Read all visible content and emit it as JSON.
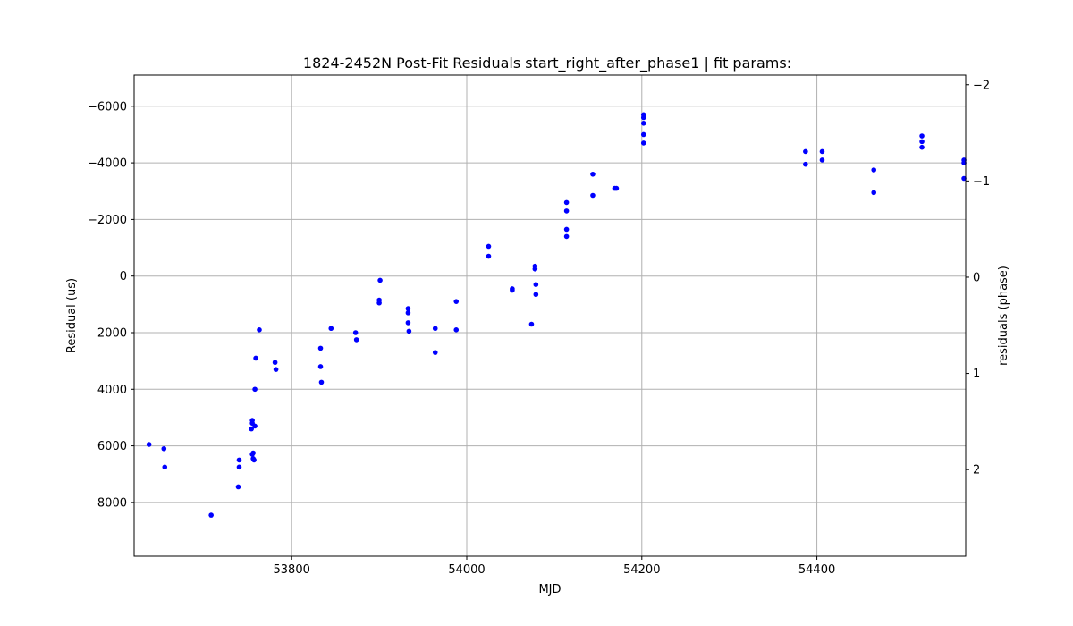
{
  "chart_data": {
    "type": "scatter",
    "title": "1824-2452N Post-Fit Residuals start_right_after_phase1 | fit params:",
    "xlabel": "MJD",
    "ylabel": "Residual (us)",
    "y2label": "residuals (phase)",
    "xlim": [
      53620,
      54570
    ],
    "ylim": [
      9900,
      -7100
    ],
    "y_inverted": true,
    "y2lim": [
      2.9,
      -2.1
    ],
    "x_ticks": [
      53800,
      54000,
      54200,
      54400
    ],
    "y_ticks": [
      -6000,
      -4000,
      -2000,
      0,
      2000,
      4000,
      6000,
      8000
    ],
    "y2_ticks": [
      -2,
      -1,
      0,
      1,
      2
    ],
    "grid": true,
    "marker_color": "#0000ff",
    "series": [
      {
        "points": [
          [
            53637,
            5950
          ],
          [
            53654,
            6100
          ],
          [
            53655,
            6750
          ],
          [
            53708,
            8450
          ],
          [
            53739,
            7450
          ],
          [
            53740,
            6750
          ],
          [
            53740,
            6500
          ],
          [
            53754,
            5400
          ],
          [
            53755,
            5100
          ],
          [
            53755,
            5200
          ],
          [
            53755,
            6300
          ],
          [
            53756,
            6250
          ],
          [
            53756,
            6450
          ],
          [
            53757,
            6500
          ],
          [
            53758,
            5300
          ],
          [
            53758,
            4000
          ],
          [
            53759,
            2900
          ],
          [
            53763,
            1900
          ],
          [
            53781,
            3050
          ],
          [
            53782,
            3300
          ],
          [
            53833,
            2550
          ],
          [
            53833,
            3200
          ],
          [
            53834,
            3750
          ],
          [
            53845,
            1850
          ],
          [
            53873,
            2000
          ],
          [
            53874,
            2250
          ],
          [
            53900,
            950
          ],
          [
            53900,
            850
          ],
          [
            53901,
            150
          ],
          [
            53933,
            1150
          ],
          [
            53933,
            1300
          ],
          [
            53933,
            1650
          ],
          [
            53934,
            1950
          ],
          [
            53964,
            1850
          ],
          [
            53964,
            2700
          ],
          [
            53988,
            900
          ],
          [
            53988,
            1900
          ],
          [
            54025,
            -1050
          ],
          [
            54025,
            -700
          ],
          [
            54052,
            500
          ],
          [
            54052,
            450
          ],
          [
            54074,
            1700
          ],
          [
            54078,
            -350
          ],
          [
            54078,
            -250
          ],
          [
            54079,
            650
          ],
          [
            54079,
            300
          ],
          [
            54114,
            -2600
          ],
          [
            54114,
            -2300
          ],
          [
            54114,
            -1650
          ],
          [
            54114,
            -1400
          ],
          [
            54144,
            -3600
          ],
          [
            54144,
            -2850
          ],
          [
            54169,
            -3100
          ],
          [
            54171,
            -3100
          ],
          [
            54202,
            -5700
          ],
          [
            54202,
            -5600
          ],
          [
            54202,
            -5400
          ],
          [
            54202,
            -5000
          ],
          [
            54202,
            -4700
          ],
          [
            54387,
            -4400
          ],
          [
            54387,
            -3950
          ],
          [
            54406,
            -4400
          ],
          [
            54406,
            -4100
          ],
          [
            54465,
            -3750
          ],
          [
            54465,
            -2950
          ],
          [
            54520,
            -4950
          ],
          [
            54520,
            -4750
          ],
          [
            54520,
            -4550
          ],
          [
            54568,
            -4100
          ],
          [
            54568,
            -4000
          ],
          [
            54568,
            -3450
          ]
        ]
      }
    ]
  }
}
